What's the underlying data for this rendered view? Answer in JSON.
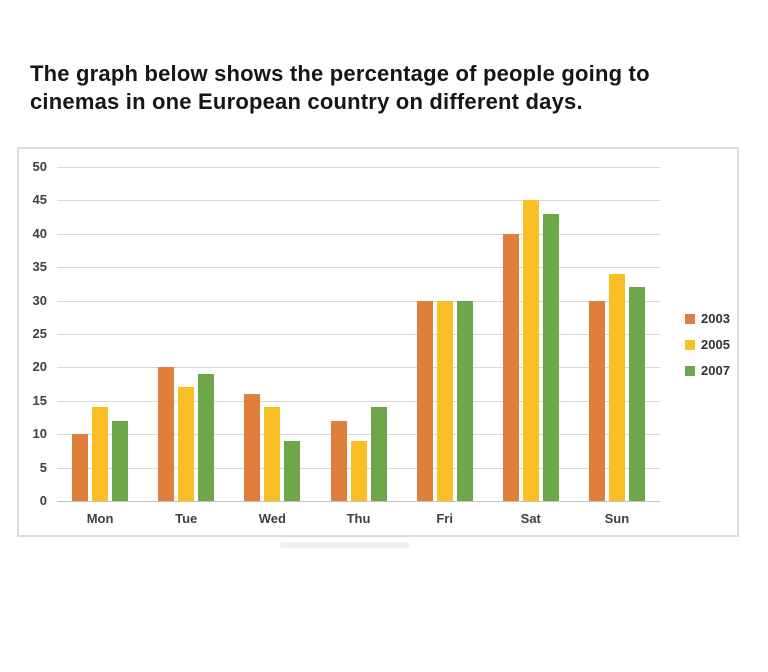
{
  "title": {
    "lines": [
      "The graph below shows the percentage of people going to",
      "cinemas in one European country on different days."
    ]
  },
  "chart_data": {
    "type": "bar",
    "categories": [
      "Mon",
      "Tue",
      "Wed",
      "Thu",
      "Fri",
      "Sat",
      "Sun"
    ],
    "series": [
      {
        "name": "2003",
        "color": "#DF7F3B",
        "values": [
          10,
          20,
          16,
          12,
          30,
          40,
          30
        ]
      },
      {
        "name": "2005",
        "color": "#F9BF25",
        "values": [
          14,
          17,
          14,
          9,
          30,
          45,
          34
        ]
      },
      {
        "name": "2007",
        "color": "#6DA74A",
        "values": [
          12,
          19,
          9,
          14,
          30,
          43,
          32
        ]
      }
    ],
    "title": "",
    "xlabel": "",
    "ylabel": "",
    "ylim": [
      0,
      50
    ],
    "yticks": [
      0,
      5,
      10,
      15,
      20,
      25,
      30,
      35,
      40,
      45,
      50
    ],
    "grid": true,
    "legend_position": "right",
    "colors": {
      "gridline": "#D9D9D9",
      "axis_label": "#404040",
      "border": "#DCDCDC"
    }
  }
}
